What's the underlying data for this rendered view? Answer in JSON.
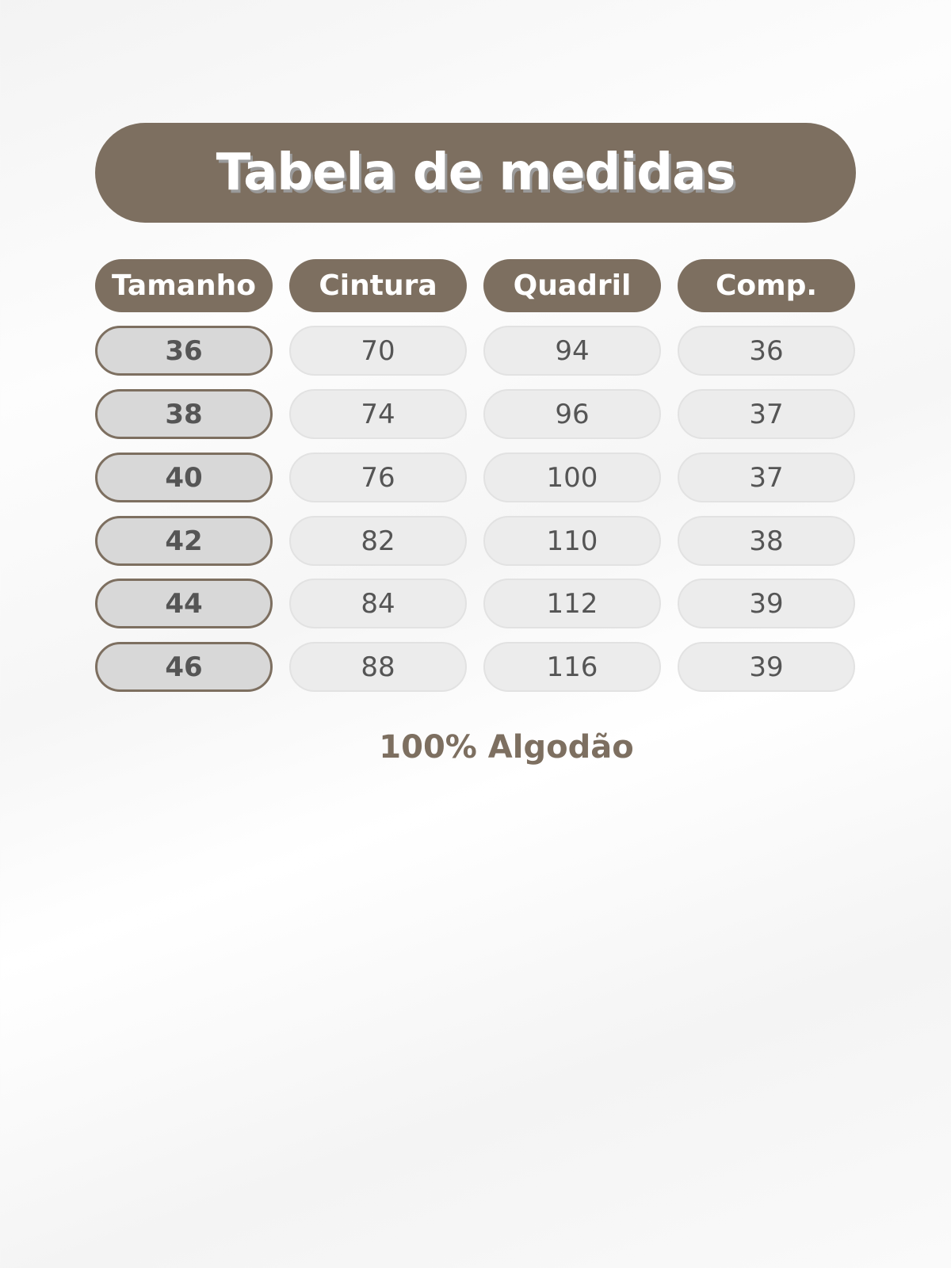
{
  "title": "Tabela de medidas",
  "columns": [
    "Tamanho",
    "Cintura",
    "Quadril",
    "Comp."
  ],
  "rows": [
    [
      "36",
      "70",
      "94",
      "36"
    ],
    [
      "38",
      "74",
      "96",
      "37"
    ],
    [
      "40",
      "76",
      "100",
      "37"
    ],
    [
      "42",
      "82",
      "110",
      "38"
    ],
    [
      "44",
      "84",
      "112",
      "39"
    ],
    [
      "46",
      "88",
      "116",
      "39"
    ]
  ],
  "footer": "100% Algodão",
  "colors": {
    "accent": "#7d6f60",
    "cell": "#ececec",
    "size_cell": "#d8d8d8"
  }
}
